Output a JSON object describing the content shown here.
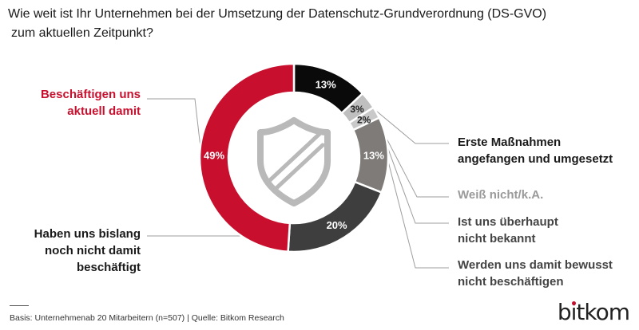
{
  "question": {
    "line1": "Wie weit ist Ihr Unternehmen bei der Umsetzung der Datenschutz-Grundverordnung (DS-GVO)",
    "line2": "zum aktuellen Zeitpunkt?"
  },
  "colors": {
    "red": "#c8102e",
    "black": "#0a0a0a",
    "light_gray": "#bfbfbf",
    "lighter_gray": "#c9c9c9",
    "mid_gray": "#7f7b78",
    "dark_gray": "#3e3e3e",
    "leader": "#9e9e9e",
    "label_gray": "#9a9a9a"
  },
  "chart_data": {
    "type": "pie",
    "donut": true,
    "start": "top, clockwise",
    "slices": [
      {
        "label_lines": [
          "Erste Maßnahmen",
          "angefangen und umgesetzt"
        ],
        "value": 13,
        "value_label": "13%",
        "color": "black",
        "label_color": "#1a1a1a"
      },
      {
        "label_lines": [
          "Weiß nicht/k.A."
        ],
        "value": 3,
        "value_label": "3%",
        "color": "light_gray",
        "label_color": "#9a9a9a"
      },
      {
        "label_lines": [
          "Ist uns überhaupt",
          "nicht bekannt"
        ],
        "value": 2,
        "value_label": "2%",
        "color": "lighter_gray",
        "label_color": "#444444"
      },
      {
        "label_lines": [
          "Werden uns damit bewusst",
          "nicht beschäftigen"
        ],
        "value": 13,
        "value_label": "13%",
        "color": "mid_gray",
        "label_color": "#444444"
      },
      {
        "label_lines": [
          "Haben uns bislang",
          "noch nicht damit",
          "beschäftigt"
        ],
        "value": 20,
        "value_label": "20%",
        "color": "dark_gray",
        "label_color": "#1a1a1a"
      },
      {
        "label_lines": [
          "Beschäftigen uns",
          "aktuell damit"
        ],
        "value": 49,
        "value_label": "49%",
        "color": "red",
        "label_color": "#c8102e"
      }
    ]
  },
  "footer": {
    "source": "Basis: Unternehmenab 20 Mitarbeitern  (n=507) | Quelle: Bitkom Research"
  },
  "brand": {
    "part1": "b",
    "part2": "i",
    "part3": "tkom"
  }
}
